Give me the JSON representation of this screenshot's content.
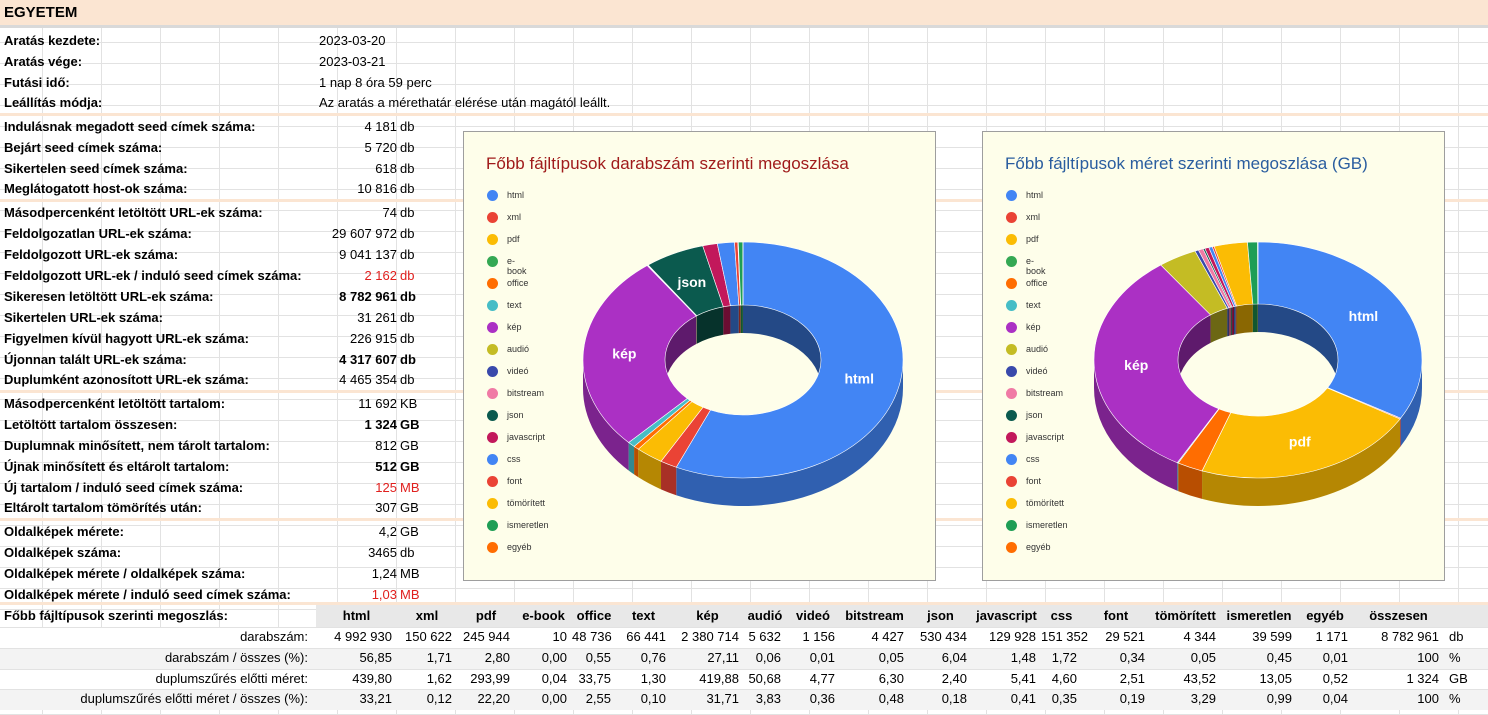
{
  "title": "EGYETEM",
  "info": [
    {
      "label": "Aratás kezdete:",
      "value": "2023-03-20"
    },
    {
      "label": "Aratás vége:",
      "value": "2023-03-21"
    },
    {
      "label": "Futási idő:",
      "value": "1 nap 8 óra 59 perc"
    },
    {
      "label": "Leállítás módja:",
      "value": "Az aratás a mérethatár elérése után magától leállt."
    }
  ],
  "stats": [
    {
      "label": "Indulásnak megadott seed címek száma:",
      "value": "4 181",
      "unit": "db"
    },
    {
      "label": "Bejárt seed címek száma:",
      "value": "5 720",
      "unit": "db"
    },
    {
      "label": "Sikertelen seed címek száma:",
      "value": "618",
      "unit": "db"
    },
    {
      "label": "Meglátogatott host-ok száma:",
      "value": "10 816",
      "unit": "db"
    },
    {
      "label": "Másodpercenként letöltött URL-ek száma:",
      "value": "74",
      "unit": "db"
    },
    {
      "label": "Feldolgozatlan URL-ek száma:",
      "value": "29 607 972",
      "unit": "db"
    },
    {
      "label": "Feldolgozott URL-ek száma:",
      "value": "9 041 137",
      "unit": "db"
    },
    {
      "label": "Feldolgozott URL-ek / induló seed címek száma:",
      "value": "2 162",
      "unit": "db"
    },
    {
      "label": "Sikeresen letöltött URL-ek száma:",
      "value": "8 782 961",
      "unit": "db"
    },
    {
      "label": "Sikertelen URL-ek száma:",
      "value": "31 261",
      "unit": "db"
    },
    {
      "label": "Figyelmen kívül hagyott URL-ek száma:",
      "value": "226 915",
      "unit": "db"
    },
    {
      "label": "Újonnan talált URL-ek száma:",
      "value": "4 317 607",
      "unit": "db"
    },
    {
      "label": "Duplumként azonosított URL-ek száma:",
      "value": "4 465 354",
      "unit": "db"
    },
    {
      "label": "Másodpercenként letöltött tartalom:",
      "value": "11 692",
      "unit": "KB"
    },
    {
      "label": "Letöltött tartalom összesen:",
      "value": "1 324",
      "unit": "GB"
    },
    {
      "label": "Duplumnak minősített, nem tárolt tartalom:",
      "value": "812",
      "unit": "GB"
    },
    {
      "label": "Újnak minősített és eltárolt tartalom:",
      "value": "512",
      "unit": "GB"
    },
    {
      "label": "Új tartalom / induló seed címek száma:",
      "value": "125",
      "unit": "MB"
    },
    {
      "label": "Eltárolt tartalom tömörítés után:",
      "value": "307",
      "unit": "GB"
    },
    {
      "label": "Oldalképek mérete:",
      "value": "4,2",
      "unit": "GB"
    },
    {
      "label": "Oldalképek száma:",
      "value": "3465",
      "unit": "db"
    },
    {
      "label": "Oldalképek mérete  / oldalképek száma:",
      "value": "1,24",
      "unit": "MB"
    },
    {
      "label": "Oldalképek mérete  / induló seed címek száma:",
      "value": "1,03",
      "unit": "MB"
    }
  ],
  "colors": {
    "html": "#4285f4",
    "xml": "#ea4335",
    "pdf": "#fbbc04",
    "e-book": "#34a853",
    "office": "#ff6d01",
    "text": "#46bdc6",
    "kép": "#ab30c4",
    "audió": "#c4bc24",
    "videó": "#3949ab",
    "bitstream": "#f07aa5",
    "json": "#0b5a4e",
    "javascript": "#c2185b",
    "css": "#4285f4",
    "font": "#ea4335",
    "tömörített": "#fbbc04",
    "ismeretlen": "#1e9e55",
    "egyéb": "#ff6d01"
  },
  "chart_data": [
    {
      "type": "pie",
      "title": "Főbb fájltípusok darabszám szerinti megoszlása",
      "legend_position": "left",
      "categories": [
        "html",
        "xml",
        "pdf",
        "e-book",
        "office",
        "text",
        "kép",
        "audió",
        "videó",
        "bitstream",
        "json",
        "javascript",
        "css",
        "font",
        "tömörített",
        "ismeretlen",
        "egyéb"
      ],
      "values": [
        4992930,
        150622,
        245944,
        10,
        48736,
        66441,
        2380714,
        5632,
        1156,
        4427,
        530434,
        129928,
        151352,
        29521,
        4344,
        39599,
        1171
      ],
      "slice_labels": {
        "html": "html",
        "kép": "kép",
        "json": "json"
      }
    },
    {
      "type": "pie",
      "title": "Főbb fájltípusok méret szerinti megoszlása (GB)",
      "legend_position": "left",
      "categories": [
        "html",
        "xml",
        "pdf",
        "e-book",
        "office",
        "text",
        "kép",
        "audió",
        "videó",
        "bitstream",
        "json",
        "javascript",
        "css",
        "font",
        "tömörített",
        "ismeretlen",
        "egyéb"
      ],
      "values": [
        439.8,
        1.62,
        293.99,
        0.04,
        33.75,
        1.3,
        419.88,
        50.68,
        4.77,
        6.3,
        2.4,
        5.41,
        4.6,
        2.51,
        43.52,
        13.05,
        0.52
      ],
      "slice_labels": {
        "html": "html",
        "pdf": "pdf",
        "kép": "kép"
      }
    }
  ],
  "table": {
    "title": "Főbb fájltípusok szerinti megoszlás:",
    "headers": [
      "html",
      "xml",
      "pdf",
      "e-book",
      "office",
      "text",
      "kép",
      "audió",
      "videó",
      "bitstream",
      "json",
      "javascript",
      "css",
      "font",
      "tömörített",
      "ismeretlen",
      "egyéb",
      "összesen"
    ],
    "rows": [
      {
        "label": "darabszám:",
        "values": [
          "4 992 930",
          "150 622",
          "245 944",
          "10",
          "48 736",
          "66 441",
          "2 380 714",
          "5 632",
          "1 156",
          "4 427",
          "530 434",
          "129 928",
          "151 352",
          "29 521",
          "4 344",
          "39 599",
          "1 171",
          "8 782 961"
        ],
        "unit": "db"
      },
      {
        "label": "darabszám / összes (%):",
        "values": [
          "56,85",
          "1,71",
          "2,80",
          "0,00",
          "0,55",
          "0,76",
          "27,11",
          "0,06",
          "0,01",
          "0,05",
          "6,04",
          "1,48",
          "1,72",
          "0,34",
          "0,05",
          "0,45",
          "0,01",
          "100"
        ],
        "unit": "%"
      },
      {
        "label": "duplumszűrés előtti méret:",
        "values": [
          "439,80",
          "1,62",
          "293,99",
          "0,04",
          "33,75",
          "1,30",
          "419,88",
          "50,68",
          "4,77",
          "6,30",
          "2,40",
          "5,41",
          "4,60",
          "2,51",
          "43,52",
          "13,05",
          "0,52",
          "1 324"
        ],
        "unit": "GB"
      },
      {
        "label": "duplumszűrés előtti méret / összes (%):",
        "values": [
          "33,21",
          "0,12",
          "22,20",
          "0,00",
          "2,55",
          "0,10",
          "31,71",
          "3,83",
          "0,36",
          "0,48",
          "0,18",
          "0,41",
          "0,35",
          "0,19",
          "3,29",
          "0,99",
          "0,04",
          "100"
        ],
        "unit": "%"
      }
    ]
  }
}
